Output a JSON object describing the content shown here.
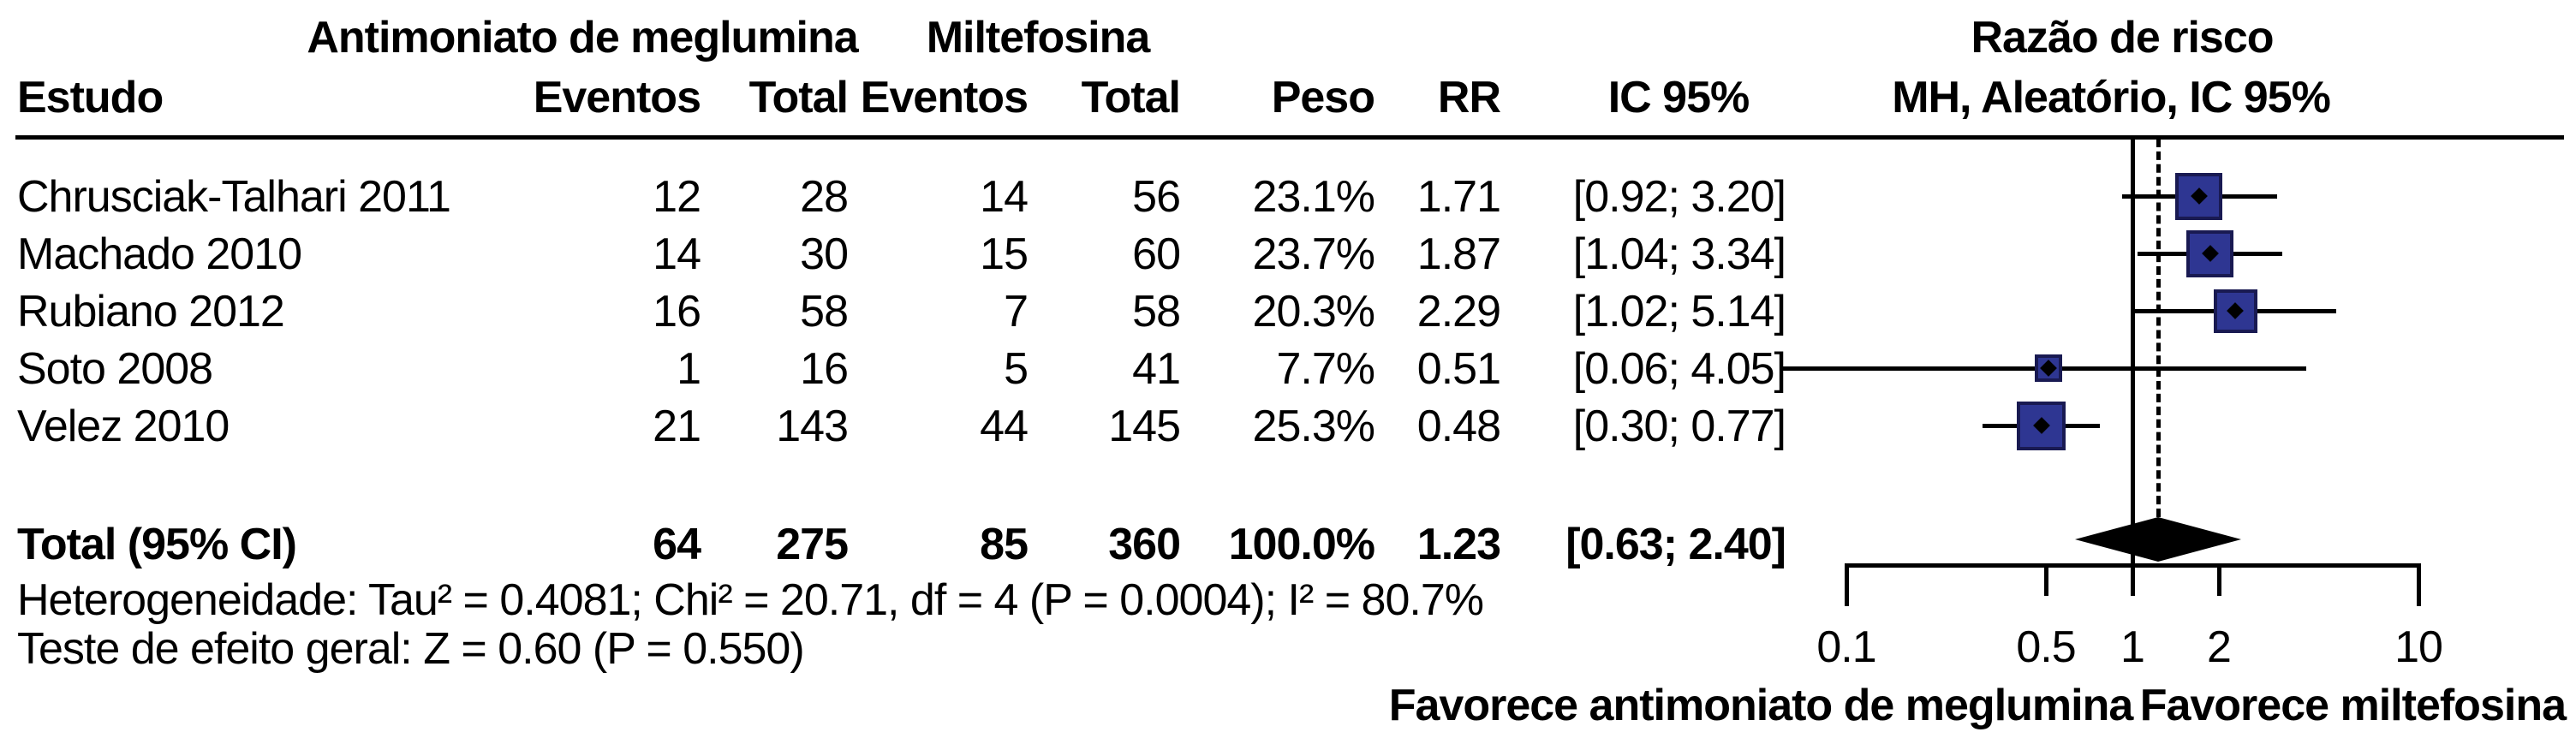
{
  "table": {
    "group_headers": {
      "treatment": "Antimoniato de meglumina",
      "control": "Miltefosina"
    },
    "col_headers": {
      "study": "Estudo",
      "events_t": "Eventos",
      "total_t": "Total",
      "events_c": "Eventos",
      "total_c": "Total",
      "weight": "Peso",
      "rr": "RR",
      "ci": "IC 95%"
    },
    "plot_header_line1": "Razão de risco",
    "plot_header_line2": "MH, Aleatório, IC 95%",
    "studies": [
      {
        "name": "Chrusciak-Talhari 2011",
        "events_t": "12",
        "total_t": "28",
        "events_c": "14",
        "total_c": "56",
        "weight": "23.1%",
        "rr": "1.71",
        "ci": "[0.92; 3.20]"
      },
      {
        "name": "Machado 2010",
        "events_t": "14",
        "total_t": "30",
        "events_c": "15",
        "total_c": "60",
        "weight": "23.7%",
        "rr": "1.87",
        "ci": "[1.04; 3.34]"
      },
      {
        "name": "Rubiano 2012",
        "events_t": "16",
        "total_t": "58",
        "events_c": "7",
        "total_c": "58",
        "weight": "20.3%",
        "rr": "2.29",
        "ci": "[1.02; 5.14]"
      },
      {
        "name": "Soto 2008",
        "events_t": "1",
        "total_t": "16",
        "events_c": "5",
        "total_c": "41",
        "weight": "7.7%",
        "rr": "0.51",
        "ci": "[0.06; 4.05]"
      },
      {
        "name": "Velez 2010",
        "events_t": "21",
        "total_t": "143",
        "events_c": "44",
        "total_c": "145",
        "weight": "25.3%",
        "rr": "0.48",
        "ci": "[0.30; 0.77]"
      }
    ],
    "total": {
      "label": "Total (95% CI)",
      "events_t": "64",
      "total_t": "275",
      "events_c": "85",
      "total_c": "360",
      "weight": "100.0%",
      "rr": "1.23",
      "ci": "[0.63; 2.40]"
    }
  },
  "stats": {
    "heterogeneity": "Heterogeneidade: Tau² = 0.4081; Chi² = 20.71, df = 4 (P = 0.0004); I² = 80.7%",
    "overall_test": "Teste de efeito geral: Z = 0.60 (P = 0.550)"
  },
  "axis": {
    "ticks": [
      "0.1",
      "0.5",
      "1",
      "2",
      "10"
    ],
    "favor_left": "Favorece antimoniato de meglumina",
    "favor_right": "Favorece miltefosina"
  },
  "colors": {
    "square_fill": "#2E3692",
    "square_border": "#191A52",
    "line": "#000000",
    "diamond": "#000000"
  },
  "chart_data": {
    "type": "forest",
    "effect_measure": "Razão de risco (RR)",
    "model": "MH, Aleatório, IC 95%",
    "x_scale": "log10",
    "x_ticks": [
      0.1,
      0.5,
      1,
      2,
      10
    ],
    "null_value": 1,
    "studies": [
      {
        "name": "Chrusciak-Talhari 2011",
        "events_treatment": 12,
        "total_treatment": 28,
        "events_control": 14,
        "total_control": 56,
        "weight_pct": 23.1,
        "rr": 1.71,
        "ci_low": 0.92,
        "ci_high": 3.2
      },
      {
        "name": "Machado 2010",
        "events_treatment": 14,
        "total_treatment": 30,
        "events_control": 15,
        "total_control": 60,
        "weight_pct": 23.7,
        "rr": 1.87,
        "ci_low": 1.04,
        "ci_high": 3.34
      },
      {
        "name": "Rubiano 2012",
        "events_treatment": 16,
        "total_treatment": 58,
        "events_control": 7,
        "total_control": 58,
        "weight_pct": 20.3,
        "rr": 2.29,
        "ci_low": 1.02,
        "ci_high": 5.14
      },
      {
        "name": "Soto 2008",
        "events_treatment": 1,
        "total_treatment": 16,
        "events_control": 5,
        "total_control": 41,
        "weight_pct": 7.7,
        "rr": 0.51,
        "ci_low": 0.06,
        "ci_high": 4.05
      },
      {
        "name": "Velez 2010",
        "events_treatment": 21,
        "total_treatment": 143,
        "events_control": 44,
        "total_control": 145,
        "weight_pct": 25.3,
        "rr": 0.48,
        "ci_low": 0.3,
        "ci_high": 0.77
      }
    ],
    "pooled": {
      "label": "Total (95% CI)",
      "events_treatment": 64,
      "total_treatment": 275,
      "events_control": 85,
      "total_control": 360,
      "weight_pct": 100.0,
      "rr": 1.23,
      "ci_low": 0.63,
      "ci_high": 2.4
    },
    "heterogeneity": {
      "tau2": 0.4081,
      "chi2": 20.71,
      "df": 4,
      "p": 0.0004,
      "i2_pct": 80.7
    },
    "overall_effect": {
      "z": 0.6,
      "p": 0.55
    },
    "favor_left_label": "Favorece antimoniato de meglumina",
    "favor_right_label": "Favorece miltefosina"
  }
}
